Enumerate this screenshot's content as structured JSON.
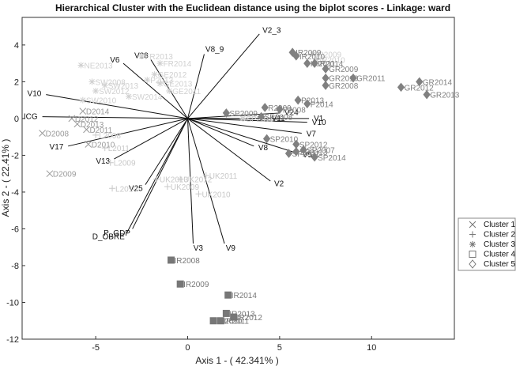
{
  "chart_data": {
    "type": "scatter",
    "title": "Hierarchical Cluster with the Euclidean distance using the biplot scores - Linkage: ward",
    "xlabel": "Axis 1 - ( 42.341% )",
    "ylabel": "Axis 2 - ( 22.41% )",
    "xlim": [
      -9,
      14.5
    ],
    "ylim": [
      -12,
      5.5
    ],
    "xticks": [
      -5,
      0,
      5,
      10
    ],
    "yticks": [
      -12,
      -10,
      -8,
      -6,
      -4,
      -2,
      0,
      2,
      4
    ],
    "grid": false,
    "legend_position": "right",
    "series": [
      {
        "name": "Cluster 1",
        "marker": "x",
        "color": "#9a9a9a",
        "points": [
          {
            "label": "D2008",
            "x": -7.9,
            "y": -0.8
          },
          {
            "label": "D2009",
            "x": -7.5,
            "y": -3.0
          },
          {
            "label": "D2010",
            "x": -5.4,
            "y": -1.4
          },
          {
            "label": "D2011",
            "x": -5.5,
            "y": -0.6
          },
          {
            "label": "D2013",
            "x": -6.0,
            "y": -0.3
          },
          {
            "label": "D2012",
            "x": -6.3,
            "y": 0.0
          },
          {
            "label": "D2014",
            "x": -5.7,
            "y": 0.4
          }
        ]
      },
      {
        "name": "Cluster 2",
        "marker": "+",
        "color": "#c8c8c8",
        "points": [
          {
            "label": "UK2013",
            "x": -1.7,
            "y": -3.3
          },
          {
            "label": "UK2012",
            "x": -0.4,
            "y": -3.3
          },
          {
            "label": "UK2009",
            "x": -1.1,
            "y": -3.7
          },
          {
            "label": "UK2010",
            "x": 0.6,
            "y": -4.1
          },
          {
            "label": "UK2011",
            "x": 1.0,
            "y": -3.1
          },
          {
            "label": "L2011",
            "x": -4.5,
            "y": -1.6
          },
          {
            "label": "L2009",
            "x": -4.2,
            "y": -2.4
          },
          {
            "label": "L2010",
            "x": -4.1,
            "y": -3.8
          },
          {
            "label": "L2008",
            "x": -5.0,
            "y": -0.9
          }
        ]
      },
      {
        "name": "Cluster 3",
        "marker": "*",
        "color": "#d0d0d0",
        "points": [
          {
            "label": "SW2008",
            "x": -5.2,
            "y": 2.0
          },
          {
            "label": "SW2013",
            "x": -4.5,
            "y": 1.8
          },
          {
            "label": "SW2012",
            "x": -5.0,
            "y": 1.5
          },
          {
            "label": "SW2014",
            "x": -3.2,
            "y": 1.2
          },
          {
            "label": "SW2010",
            "x": -5.7,
            "y": 1.0
          },
          {
            "label": "NE2013",
            "x": -5.8,
            "y": 2.9
          },
          {
            "label": "FR2013",
            "x": -2.5,
            "y": 3.4
          },
          {
            "label": "FR2014",
            "x": -1.5,
            "y": 3.0
          },
          {
            "label": "GE2012",
            "x": -1.8,
            "y": 2.4
          },
          {
            "label": "GE2013",
            "x": -1.5,
            "y": 1.9
          },
          {
            "label": "GE2011",
            "x": -1.0,
            "y": 1.5
          },
          {
            "label": "P2013",
            "x": -2.2,
            "y": 2.1
          },
          {
            "label": "SP2011",
            "x": 3.0,
            "y": 0.0
          },
          {
            "label": "IR2009",
            "x": 6.8,
            "y": 3.5
          },
          {
            "label": "IR2010",
            "x": 7.0,
            "y": 3.2
          }
        ]
      },
      {
        "name": "Cluster 4",
        "marker": "square",
        "color": "#777777",
        "points": [
          {
            "label": "IR2008",
            "x": -0.9,
            "y": -7.7
          },
          {
            "label": "IR2009",
            "x": -0.4,
            "y": -9.0
          },
          {
            "label": "IR2014",
            "x": 2.2,
            "y": -9.6
          },
          {
            "label": "IR2013",
            "x": 2.1,
            "y": -10.6
          },
          {
            "label": "IR2012",
            "x": 2.5,
            "y": -10.8
          },
          {
            "label": "IR2011",
            "x": 1.8,
            "y": -11.0
          },
          {
            "label": "IR2010",
            "x": 1.4,
            "y": -11.0
          }
        ]
      },
      {
        "name": "Cluster 5",
        "marker": "diamond",
        "color": "#808080",
        "points": [
          {
            "label": "GR2014",
            "x": 12.6,
            "y": 2.0
          },
          {
            "label": "GR2012",
            "x": 11.6,
            "y": 1.7
          },
          {
            "label": "GR2013",
            "x": 13.0,
            "y": 1.3
          },
          {
            "label": "GR2011",
            "x": 9.0,
            "y": 2.2
          },
          {
            "label": "GR2009",
            "x": 7.5,
            "y": 2.7
          },
          {
            "label": "GR2010",
            "x": 7.5,
            "y": 2.2
          },
          {
            "label": "GR2008",
            "x": 7.5,
            "y": 1.8
          },
          {
            "label": "IR2009",
            "x": 5.7,
            "y": 3.6
          },
          {
            "label": "IR2010",
            "x": 5.9,
            "y": 3.4
          },
          {
            "label": "IR2011",
            "x": 6.5,
            "y": 3.0
          },
          {
            "label": "IR2014",
            "x": 6.9,
            "y": 3.0
          },
          {
            "label": "P2013",
            "x": 6.0,
            "y": 1.0
          },
          {
            "label": "P2014",
            "x": 6.5,
            "y": 0.8
          },
          {
            "label": "R2009",
            "x": 4.2,
            "y": 0.6
          },
          {
            "label": "P2008",
            "x": 5.0,
            "y": 0.5
          },
          {
            "label": "SP2009",
            "x": 2.1,
            "y": 0.3
          },
          {
            "label": "SP2008",
            "x": 4.0,
            "y": 0.1
          },
          {
            "label": "SP2010",
            "x": 4.3,
            "y": -1.1
          },
          {
            "label": "SP2012",
            "x": 5.9,
            "y": -1.4
          },
          {
            "label": "SP2013",
            "x": 5.9,
            "y": -1.8
          },
          {
            "label": "SP2014",
            "x": 6.9,
            "y": -2.1
          },
          {
            "label": "SP2011",
            "x": 5.5,
            "y": -1.9
          },
          {
            "label": "SP2007",
            "x": 6.3,
            "y": -1.7
          }
        ]
      }
    ],
    "vectors": [
      {
        "label": "V6",
        "x": -3.5,
        "y": 3.0
      },
      {
        "label": "V28",
        "x": -2.0,
        "y": 3.2
      },
      {
        "label": "V8_9",
        "x": 0.9,
        "y": 3.5
      },
      {
        "label": "V2_3",
        "x": 3.9,
        "y": 4.6
      },
      {
        "label": "V10",
        "x": -7.7,
        "y": 1.3
      },
      {
        "label": "ICG",
        "x": -7.9,
        "y": 0.1
      },
      {
        "label": "V17",
        "x": -6.5,
        "y": -1.5
      },
      {
        "label": "V13",
        "x": -4.0,
        "y": -2.2
      },
      {
        "label": "V25",
        "x": -2.3,
        "y": -3.6
      },
      {
        "label": "D_OBRE",
        "x": -3.3,
        "y": -6.2
      },
      {
        "label": "P_GDP",
        "x": -3.0,
        "y": -6.0
      },
      {
        "label": "V3",
        "x": 0.3,
        "y": -6.8
      },
      {
        "label": "V9",
        "x": 2.0,
        "y": -6.8
      },
      {
        "label": "V2",
        "x": 4.5,
        "y": -3.4
      },
      {
        "label": "V8",
        "x": 3.6,
        "y": -1.5
      },
      {
        "label": "V5",
        "x": 6.0,
        "y": -1.9
      },
      {
        "label": "V7",
        "x": 6.2,
        "y": -0.8
      },
      {
        "label": "V10",
        "x": 6.5,
        "y": -0.2
      },
      {
        "label": "V1",
        "x": 6.6,
        "y": 0.0
      },
      {
        "label": "V24",
        "x": 5.0,
        "y": 0.3
      },
      {
        "label": "V11",
        "x": 4.3,
        "y": 0.0
      }
    ],
    "legend": [
      {
        "name": "Cluster 1",
        "marker": "x"
      },
      {
        "name": "Cluster 2",
        "marker": "+"
      },
      {
        "name": "Cluster 3",
        "marker": "*"
      },
      {
        "name": "Cluster 4",
        "marker": "square"
      },
      {
        "name": "Cluster 5",
        "marker": "diamond"
      }
    ]
  }
}
